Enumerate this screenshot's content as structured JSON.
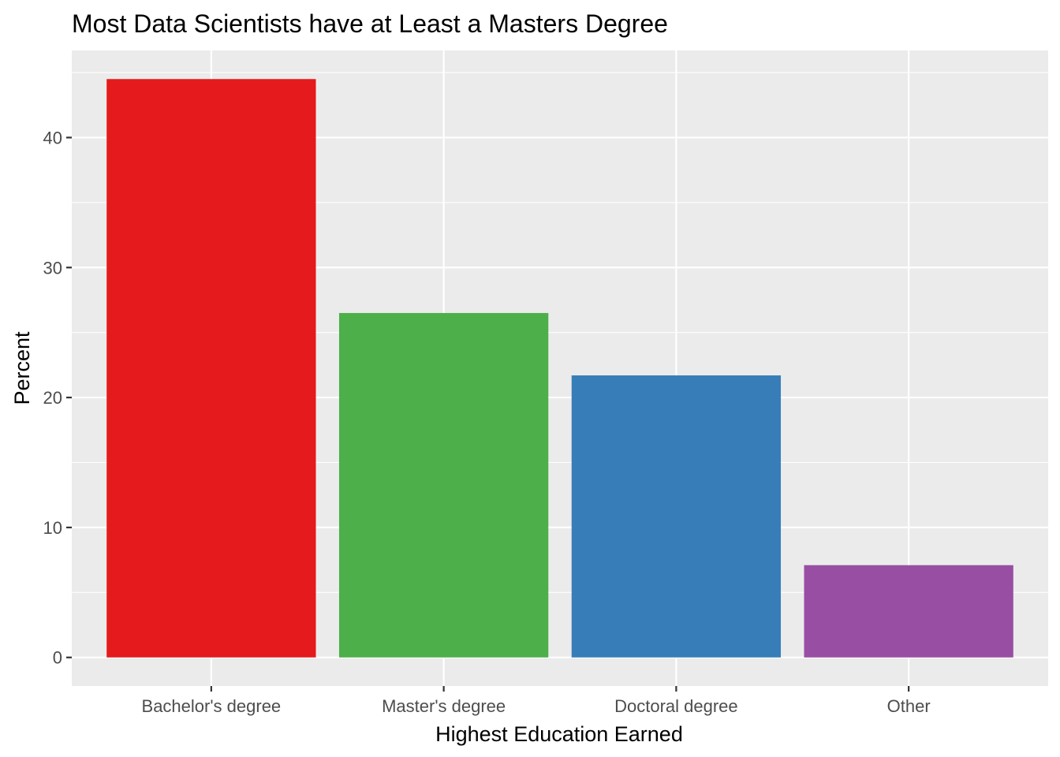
{
  "chart_data": {
    "type": "bar",
    "title": "Most Data Scientists have at Least a Masters Degree",
    "xlabel": "Highest Education Earned",
    "ylabel": "Percent",
    "categories": [
      "Bachelor's degree",
      "Master's degree",
      "Doctoral degree",
      "Other"
    ],
    "values": [
      44.5,
      26.5,
      21.7,
      7.1
    ],
    "colors": [
      "#E41A1C",
      "#4DAF4A",
      "#377EB8",
      "#984EA3"
    ],
    "ylim": [
      -2.2,
      46.7
    ],
    "yticks": [
      0,
      10,
      20,
      30,
      40
    ],
    "grid": true,
    "legend": "none",
    "panel_background": "#EBEBEB",
    "grid_color": "#FFFFFF"
  }
}
